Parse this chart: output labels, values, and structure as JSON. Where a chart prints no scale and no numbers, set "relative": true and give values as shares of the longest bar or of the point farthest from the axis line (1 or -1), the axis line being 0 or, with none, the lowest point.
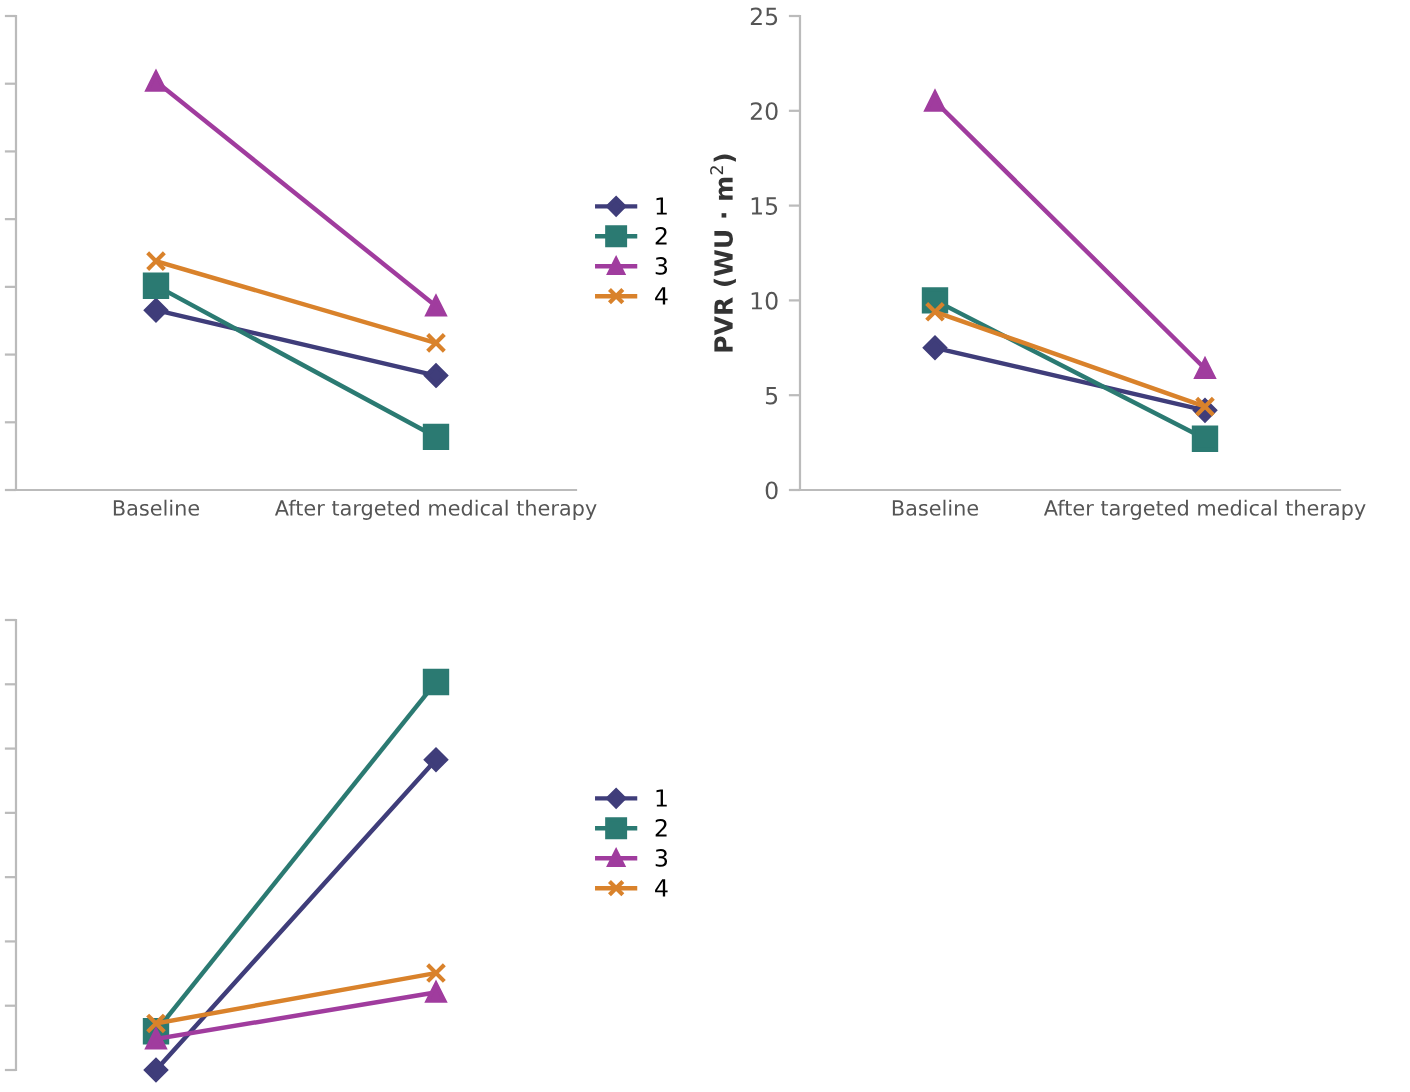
{
  "chart_data": [
    {
      "type": "line",
      "relative": true,
      "categories": [
        "Baseline",
        "After targeted medical therapy"
      ],
      "legend": "right",
      "tick_labels": "x",
      "series": [
        {
          "name": "1",
          "color": "#3f3d7a",
          "marker": "diamond",
          "values": [
            0.44,
            0.28
          ]
        },
        {
          "name": "2",
          "color": "#2b7a72",
          "marker": "square",
          "values": [
            0.5,
            0.13
          ]
        },
        {
          "name": "3",
          "color": "#a03c9e",
          "marker": "triangle",
          "values": [
            1.0,
            0.45
          ]
        },
        {
          "name": "4",
          "color": "#d9822b",
          "marker": "cross",
          "values": [
            0.56,
            0.36
          ]
        }
      ]
    },
    {
      "type": "line",
      "ylabel": "PVR (WU · m$^{2}$)",
      "categories": [
        "Baseline",
        "After targeted medical therapy"
      ],
      "ylim": [
        0,
        25
      ],
      "yticks": [
        0,
        5,
        10,
        15,
        20,
        25
      ],
      "series": [
        {
          "color": "#3f3d7a",
          "marker": "diamond",
          "values": [
            7.5,
            4.2
          ]
        },
        {
          "color": "#2b7a72",
          "marker": "square",
          "values": [
            10.0,
            2.7
          ]
        },
        {
          "color": "#a03c9e",
          "marker": "triangle",
          "values": [
            20.5,
            6.4
          ]
        },
        {
          "color": "#d9822b",
          "marker": "cross",
          "values": [
            9.4,
            4.4
          ]
        }
      ]
    },
    {
      "type": "line",
      "relative": true,
      "categories": [
        null,
        null
      ],
      "legend": "right",
      "tick_labels": false,
      "series": [
        {
          "name": "1",
          "color": "#3f3d7a",
          "marker": "diamond",
          "values": [
            0.0,
            0.8
          ]
        },
        {
          "name": "2",
          "color": "#2b7a72",
          "marker": "square",
          "values": [
            0.1,
            1.0
          ]
        },
        {
          "name": "3",
          "color": "#a03c9e",
          "marker": "triangle",
          "values": [
            0.08,
            0.2
          ]
        },
        {
          "name": "4",
          "color": "#d9822b",
          "marker": "cross",
          "values": [
            0.12,
            0.25
          ]
        }
      ]
    }
  ]
}
